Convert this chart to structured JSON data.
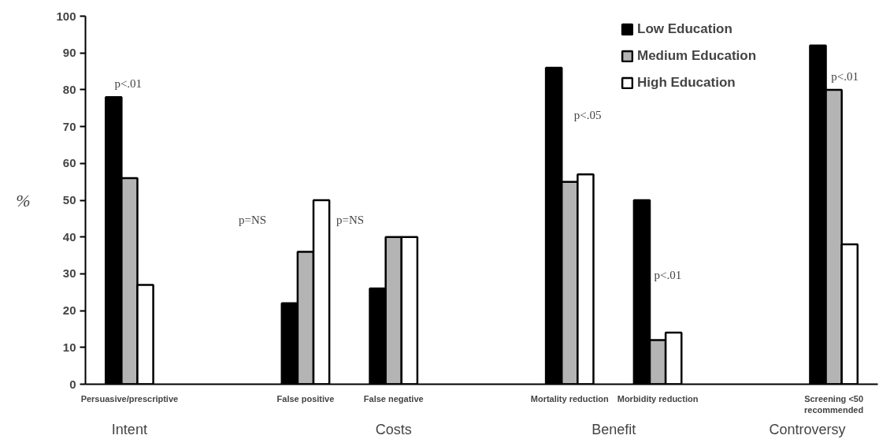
{
  "chart_data": {
    "type": "bar",
    "ylabel": "%",
    "categories": [
      "Persuasive/prescriptive",
      null,
      "False positive",
      "False negative",
      null,
      "Mortality reduction",
      "Morbidity reduction",
      null,
      "Screening <50 recommended"
    ],
    "series": [
      {
        "name": "Low Education",
        "color": "#000000",
        "values": [
          78,
          null,
          22,
          26,
          null,
          86,
          50,
          null,
          92
        ]
      },
      {
        "name": "Medium Education",
        "color": "#b4b4b4",
        "values": [
          56,
          null,
          36,
          40,
          null,
          55,
          12,
          null,
          80
        ]
      },
      {
        "name": "High Education",
        "color": "#ffffff",
        "values": [
          27,
          null,
          50,
          40,
          null,
          57,
          14,
          null,
          38
        ]
      }
    ],
    "ylim": [
      0,
      100
    ],
    "yticks": [
      0,
      10,
      20,
      30,
      40,
      50,
      60,
      70,
      80,
      90,
      100
    ],
    "grid": false,
    "legend": "top right",
    "annotations": [
      "p<.01",
      "p=NS",
      "p=NS",
      "p<.05",
      "p<.01",
      "p<.01",
      "Intent",
      "Costs",
      "Benefit",
      "Controversy"
    ]
  }
}
